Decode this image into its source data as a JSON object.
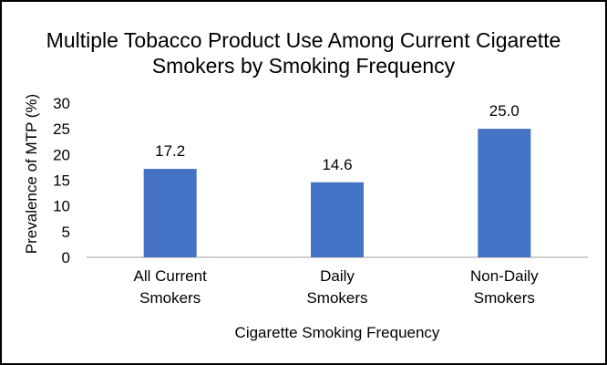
{
  "chart_data": {
    "type": "bar",
    "title_lines": [
      "Multiple Tobacco Product Use Among Current Cigarette",
      "Smokers by Smoking Frequency"
    ],
    "categories": [
      [
        "All Current",
        "Smokers"
      ],
      [
        "Daily",
        "Smokers"
      ],
      [
        "Non-Daily",
        "Smokers"
      ]
    ],
    "values": [
      17.2,
      14.6,
      25.0
    ],
    "value_labels": [
      "17.2",
      "14.6",
      "25.0"
    ],
    "xlabel": "Cigarette Smoking Frequency",
    "ylabel": "Prevalence of MTP (%)",
    "ylim": [
      0,
      30
    ],
    "yticks": [
      "0",
      "5",
      "10",
      "15",
      "20",
      "25",
      "30"
    ],
    "grid": false,
    "legend": "none",
    "bar_color": "#4472c4"
  }
}
